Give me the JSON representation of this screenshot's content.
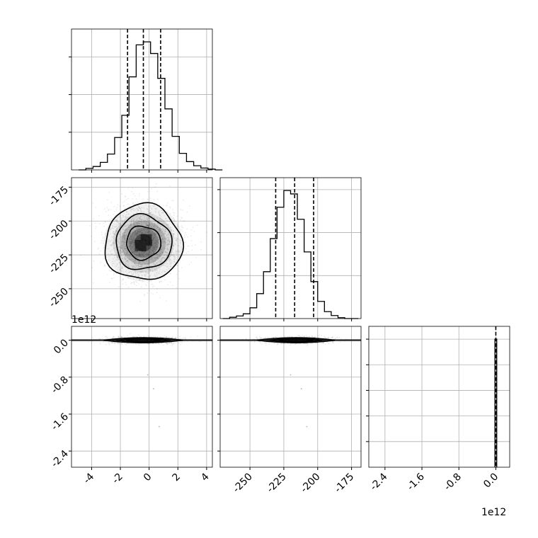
{
  "chart_data": {
    "type": "corner",
    "grid": true,
    "panels": [
      {
        "id": "hist-p0",
        "type": "histogram",
        "x_param": 0,
        "xlim": [
          -5.4,
          4.4
        ],
        "bins": {
          "start": -4.9,
          "width": 0.5,
          "counts": [
            0,
            4,
            9,
            20,
            42,
            86,
            145,
            247,
            332,
            340,
            309,
            243,
            162,
            89,
            44,
            22,
            11,
            5,
            2,
            0
          ]
        },
        "quantiles": [
          -1.5,
          -0.4,
          0.8
        ]
      },
      {
        "id": "scatter-p1-p0",
        "type": "2d_hist_contour",
        "x_param": 0,
        "y_param": 1,
        "xlim": [
          -5.4,
          4.4
        ],
        "ylim": [
          -272,
          -168
        ],
        "ytick_labels": [
          "-175",
          "-200",
          "-225",
          "-250"
        ],
        "ytick_values": [
          -175,
          -200,
          -225,
          -250
        ],
        "center": [
          -0.4,
          -216
        ],
        "spread": [
          1.25,
          13
        ],
        "contour_levels": [
          0.39,
          0.86,
          0.99
        ]
      },
      {
        "id": "hist-p1",
        "type": "histogram",
        "x_param": 1,
        "xlim": [
          -272,
          -168
        ],
        "bins": {
          "start": -270,
          "width": 5,
          "counts": [
            0,
            3,
            6,
            11,
            25,
            58,
            109,
            186,
            259,
            298,
            290,
            231,
            155,
            86,
            40,
            16,
            7,
            2,
            0,
            0
          ]
        },
        "quantiles": [
          -231,
          -217,
          -203
        ]
      },
      {
        "id": "scatter-p2-p0",
        "type": "2d_hist_contour",
        "x_param": 0,
        "y_param": 2,
        "xlim": [
          -5.4,
          4.4
        ],
        "ylim": [
          -2750000000000.0,
          300000000000.0
        ],
        "center": [
          -0.4,
          0
        ],
        "spread": [
          1.25,
          28000000000.0
        ],
        "outliers": [
          [
            -0.1,
            -750000000000.0
          ],
          [
            0.3,
            -1050000000000.0
          ],
          [
            0.7,
            -1870000000000.0
          ]
        ]
      },
      {
        "id": "scatter-p2-p1",
        "type": "2d_hist_contour",
        "x_param": 1,
        "y_param": 2,
        "xlim": [
          -272,
          -168
        ],
        "ylim": [
          -2750000000000.0,
          300000000000.0
        ],
        "center": [
          -216,
          0
        ],
        "spread": [
          13,
          28000000000.0
        ],
        "outliers": [
          [
            -220,
            -750000000000.0
          ],
          [
            -212,
            -1050000000000.0
          ],
          [
            -208,
            -1870000000000.0
          ]
        ]
      },
      {
        "id": "hist-p2",
        "type": "histogram",
        "x_param": 2,
        "xlim": [
          -2750000000000.0,
          300000000000.0
        ],
        "bins": {
          "start": -20000000000.0,
          "width": 40000000000.0,
          "counts": [
            1000
          ]
        },
        "quantiles": [
          0
        ]
      }
    ],
    "axes": {
      "x_param0": {
        "tick_values": [
          -4,
          -2,
          0,
          2,
          4
        ],
        "tick_labels": [
          "-4",
          "-2",
          "0",
          "2",
          "4"
        ]
      },
      "x_param1": {
        "tick_values": [
          -250,
          -225,
          -200,
          -175
        ],
        "tick_labels": [
          "-250",
          "-225",
          "-200",
          "-175"
        ]
      },
      "x_param2": {
        "tick_values": [
          -2400000000000.0,
          -1600000000000.0,
          -800000000000.0,
          0
        ],
        "tick_labels": [
          "-2.4",
          "-1.6",
          "-0.8",
          "0.0"
        ],
        "offset_text": "1e12"
      },
      "y_param2": {
        "tick_values": [
          0,
          -800000000000.0,
          -1600000000000.0,
          -2400000000000.0
        ],
        "tick_labels": [
          "0.0",
          "-0.8",
          "-1.6",
          "-2.4"
        ],
        "offset_text": "1e12"
      }
    },
    "colors": {
      "line": "#000000",
      "grid": "#b0b0b0",
      "density_points": "#000000"
    }
  }
}
